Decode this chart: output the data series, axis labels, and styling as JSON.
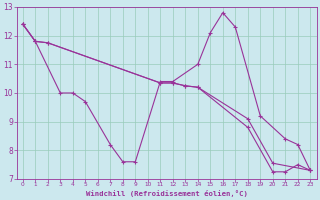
{
  "xlabel": "Windchill (Refroidissement éolien,°C)",
  "bg_color": "#cce8ee",
  "line_color": "#993399",
  "grid_color": "#99ccbb",
  "ylim": [
    7,
    13
  ],
  "xlim": [
    -0.5,
    23.5
  ],
  "series1_x": [
    0,
    1,
    3,
    4,
    5,
    7,
    8,
    9,
    11,
    12,
    14,
    15,
    16,
    17,
    19,
    21,
    22,
    23
  ],
  "series1_y": [
    12.4,
    11.8,
    10.0,
    10.0,
    9.7,
    8.2,
    7.6,
    7.6,
    10.4,
    10.4,
    11.0,
    12.1,
    12.8,
    12.3,
    9.2,
    8.4,
    8.2,
    7.3
  ],
  "series2_x": [
    0,
    1,
    2,
    11,
    12,
    13,
    14,
    18,
    20,
    23
  ],
  "series2_y": [
    12.4,
    11.8,
    11.75,
    10.35,
    10.35,
    10.25,
    10.2,
    9.1,
    7.55,
    7.3
  ],
  "series3_x": [
    0,
    1,
    2,
    11,
    12,
    13,
    14,
    18,
    20,
    21,
    22,
    23
  ],
  "series3_y": [
    12.4,
    11.8,
    11.75,
    10.35,
    10.35,
    10.25,
    10.2,
    8.8,
    7.25,
    7.25,
    7.5,
    7.3
  ],
  "yticks": [
    7,
    8,
    9,
    10,
    11,
    12,
    13
  ],
  "xticks": [
    0,
    1,
    2,
    3,
    4,
    5,
    6,
    7,
    8,
    9,
    10,
    11,
    12,
    13,
    14,
    15,
    16,
    17,
    18,
    19,
    20,
    21,
    22,
    23
  ]
}
